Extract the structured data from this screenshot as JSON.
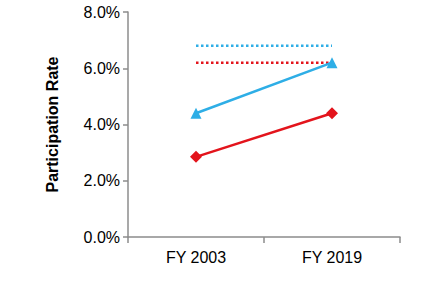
{
  "chart_data": {
    "type": "line",
    "y_label": "Participation Rate",
    "categories": [
      "FY 2003",
      "FY 2019"
    ],
    "series": [
      {
        "color": "#2eaee6",
        "marker": "triangle",
        "line_style": "solid",
        "values": [
          4.4,
          6.2
        ]
      },
      {
        "color": "#e3141c",
        "marker": "diamond",
        "line_style": "solid",
        "values": [
          2.85,
          4.4
        ]
      },
      {
        "color": "#2eaee6",
        "marker": "none",
        "line_style": "dotted",
        "values": [
          6.8,
          6.8
        ]
      },
      {
        "color": "#e3141c",
        "marker": "none",
        "line_style": "dotted",
        "values": [
          6.2,
          6.2
        ]
      }
    ],
    "ylim": [
      0,
      8
    ],
    "yticks": [
      {
        "value": 0,
        "label": "0.0%"
      },
      {
        "value": 2,
        "label": "2.0%"
      },
      {
        "value": 4,
        "label": "4.0%"
      },
      {
        "value": 6,
        "label": "6.0%"
      },
      {
        "value": 8,
        "label": "8.0%"
      }
    ],
    "grid": false
  }
}
